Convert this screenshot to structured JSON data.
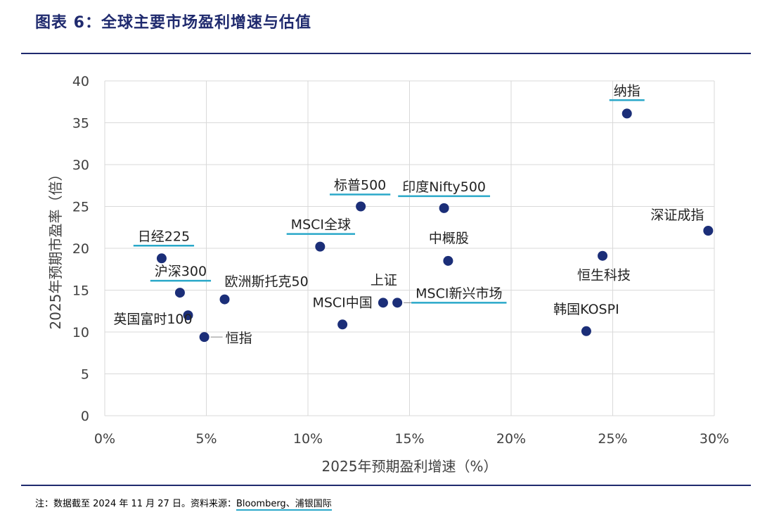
{
  "figure": {
    "title": "图表 6：全球主要市场盈利增速与估值",
    "note_prefix": "注：数据截至 2024 年 11 月 27 日。资料来源：",
    "note_source": "Bloomberg、浦银国际"
  },
  "colors": {
    "title": "#1f2a6e",
    "point": "#1b2e78",
    "grid": "#d9d9d9",
    "accent_underline": "#2aa8c9",
    "text": "#404040"
  },
  "chart_data": {
    "type": "scatter",
    "xlabel": "2025年预期盈利增速（%）",
    "ylabel": "2025年预期市盈率（倍）",
    "xlim": [
      0,
      0.3
    ],
    "ylim": [
      0,
      40
    ],
    "grid": true,
    "x_ticks": [
      0,
      0.05,
      0.1,
      0.15,
      0.2,
      0.25,
      0.3
    ],
    "x_tick_labels": [
      "0%",
      "5%",
      "10%",
      "15%",
      "20%",
      "25%",
      "30%"
    ],
    "y_ticks": [
      0,
      5,
      10,
      15,
      20,
      25,
      30,
      35,
      40
    ],
    "y_tick_labels": [
      "0",
      "5",
      "10",
      "15",
      "20",
      "25",
      "30",
      "35",
      "40"
    ],
    "points": [
      {
        "label": "纳指",
        "x": 0.257,
        "y": 36.1,
        "underline": true
      },
      {
        "label": "深证成指",
        "x": 0.297,
        "y": 22.1,
        "underline": false
      },
      {
        "label": "标普500",
        "x": 0.126,
        "y": 25.0,
        "underline": true
      },
      {
        "label": "印度Nifty500",
        "x": 0.167,
        "y": 24.8,
        "underline": true
      },
      {
        "label": "MSCI全球",
        "x": 0.106,
        "y": 20.2,
        "underline": true
      },
      {
        "label": "日经225",
        "x": 0.028,
        "y": 18.8,
        "underline": true
      },
      {
        "label": "中概股",
        "x": 0.169,
        "y": 18.5,
        "underline": false
      },
      {
        "label": "恒生科技",
        "x": 0.245,
        "y": 19.1,
        "underline": false
      },
      {
        "label": "沪深300",
        "x": 0.037,
        "y": 14.7,
        "underline": true
      },
      {
        "label": "欧洲斯托克50",
        "x": 0.059,
        "y": 13.9,
        "underline": false
      },
      {
        "label": "上证",
        "x": 0.137,
        "y": 13.5,
        "underline": false
      },
      {
        "label": "MSCI新兴市场",
        "x": 0.144,
        "y": 13.5,
        "underline": true
      },
      {
        "label": "MSCI中国",
        "x": 0.117,
        "y": 10.9,
        "underline": false
      },
      {
        "label": "英国富时100",
        "x": 0.041,
        "y": 12.0,
        "underline": false
      },
      {
        "label": "恒指",
        "x": 0.049,
        "y": 9.4,
        "underline": false
      },
      {
        "label": "韩国KOSPI",
        "x": 0.237,
        "y": 10.1,
        "underline": false
      }
    ]
  }
}
